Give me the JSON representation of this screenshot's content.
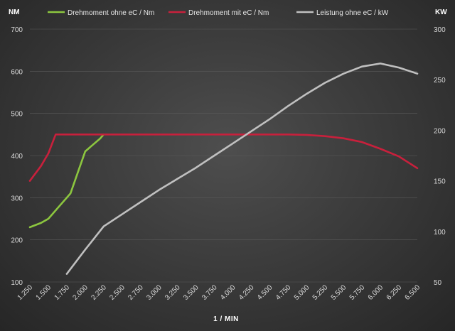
{
  "chart_data": {
    "type": "line",
    "title": "",
    "xlabel": "1 / MIN",
    "ylabel_left": "NM",
    "ylabel_right": "KW",
    "x_ticks": [
      1250,
      1500,
      1750,
      2000,
      2250,
      2500,
      2750,
      3000,
      3250,
      3500,
      3750,
      4000,
      4250,
      4500,
      4750,
      5000,
      5250,
      5500,
      5750,
      6000,
      6250,
      6500
    ],
    "x_tick_labels": [
      "1.250",
      "1.500",
      "1.750",
      "2.000",
      "2.250",
      "2.500",
      "2.750",
      "3.000",
      "3.250",
      "3.500",
      "3.750",
      "4.000",
      "4.250",
      "4.500",
      "4.750",
      "5.000",
      "5.250",
      "5.500",
      "5.750",
      "6.000",
      "6.250",
      "6.500"
    ],
    "xlim": [
      1250,
      6500
    ],
    "ylim_left": [
      100,
      700
    ],
    "ylim_right": [
      50,
      300
    ],
    "y_left_ticks": [
      100,
      200,
      300,
      400,
      500,
      600,
      700
    ],
    "y_right_ticks": [
      50,
      100,
      150,
      200,
      250,
      300
    ],
    "legend_position": "top",
    "series": [
      {
        "name": "Drehmoment ohne eC / Nm",
        "axis": "left",
        "color": "#8cc63f",
        "x": [
          1250,
          1400,
          1500,
          1650,
          1800,
          1900,
          2000,
          2100,
          2200,
          2250
        ],
        "y": [
          230,
          240,
          250,
          280,
          310,
          360,
          410,
          425,
          440,
          450
        ]
      },
      {
        "name": "Drehmoment mit eC / Nm",
        "axis": "left",
        "color": "#c8203c",
        "x": [
          1250,
          1400,
          1500,
          1600,
          2000,
          3000,
          4000,
          4750,
          5000,
          5250,
          5500,
          5750,
          6000,
          6250,
          6500
        ],
        "y": [
          340,
          375,
          405,
          450,
          450,
          450,
          450,
          450,
          449,
          446,
          441,
          432,
          416,
          398,
          370
        ]
      },
      {
        "name": "Leistung ohne eC / kW",
        "axis": "right",
        "color": "#c0c0c0",
        "x": [
          1750,
          2000,
          2250,
          2500,
          2750,
          3000,
          3250,
          3500,
          3750,
          4000,
          4250,
          4500,
          4750,
          5000,
          5250,
          5500,
          5750,
          6000,
          6250,
          6500
        ],
        "y": [
          58,
          82,
          105,
          117,
          129,
          141,
          152,
          163,
          175,
          187,
          199,
          211,
          224,
          236,
          247,
          256,
          263,
          266,
          262,
          256
        ]
      }
    ]
  }
}
